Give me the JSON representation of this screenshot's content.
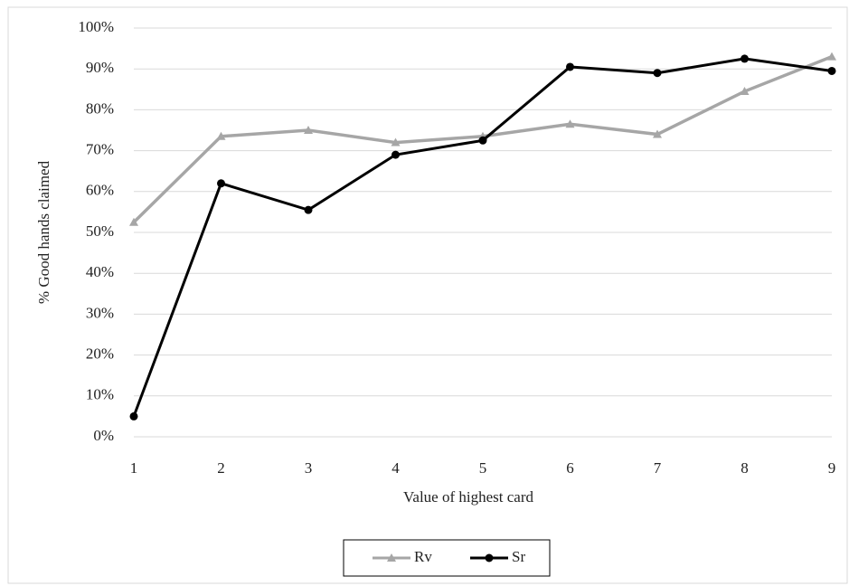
{
  "chart_data": {
    "type": "line",
    "x_label": "Value of highest card",
    "y_label": "% Good hands claimed",
    "x": [
      1,
      2,
      3,
      4,
      5,
      6,
      7,
      8,
      9
    ],
    "xlim": [
      1,
      9
    ],
    "xticks": [
      1,
      2,
      3,
      4,
      5,
      6,
      7,
      8,
      9
    ],
    "ylim": [
      0,
      100
    ],
    "yticks": [
      {
        "value": 0,
        "label": "0%"
      },
      {
        "value": 10,
        "label": "10%"
      },
      {
        "value": 20,
        "label": "20%"
      },
      {
        "value": 30,
        "label": "30%"
      },
      {
        "value": 40,
        "label": "40%"
      },
      {
        "value": 50,
        "label": "50%"
      },
      {
        "value": 60,
        "label": "60%"
      },
      {
        "value": 70,
        "label": "70%"
      },
      {
        "value": 80,
        "label": "80%"
      },
      {
        "value": 90,
        "label": "90%"
      },
      {
        "value": 100,
        "label": "100%"
      }
    ],
    "grid": true,
    "legend": "bottom",
    "series": [
      {
        "name": "Rv",
        "color": "#a6a6a6",
        "marker": "triangle",
        "values": [
          52.5,
          73.5,
          75,
          72,
          73.5,
          76.5,
          74,
          84.5,
          93
        ]
      },
      {
        "name": "Sr",
        "color": "#000000",
        "marker": "circle",
        "values": [
          5,
          62,
          55.5,
          69,
          72.5,
          90.5,
          89,
          92.5,
          89.5
        ]
      }
    ]
  }
}
